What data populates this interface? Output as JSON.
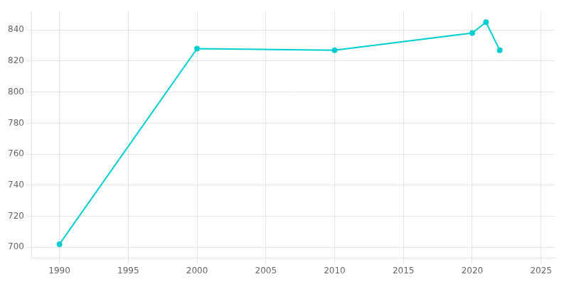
{
  "chart_data": {
    "type": "line",
    "x": [
      1990,
      2000,
      2010,
      2020,
      2021,
      2022
    ],
    "values": [
      702,
      828,
      827,
      838,
      845,
      827
    ],
    "color": "#00CED1",
    "marker": "circle",
    "xlim": [
      1988,
      2026
    ],
    "ylim": [
      693,
      852
    ],
    "xticks": [
      1990,
      1995,
      2000,
      2005,
      2010,
      2015,
      2020,
      2025
    ],
    "yticks": [
      700,
      720,
      740,
      760,
      780,
      800,
      820,
      840
    ],
    "grid": true
  }
}
